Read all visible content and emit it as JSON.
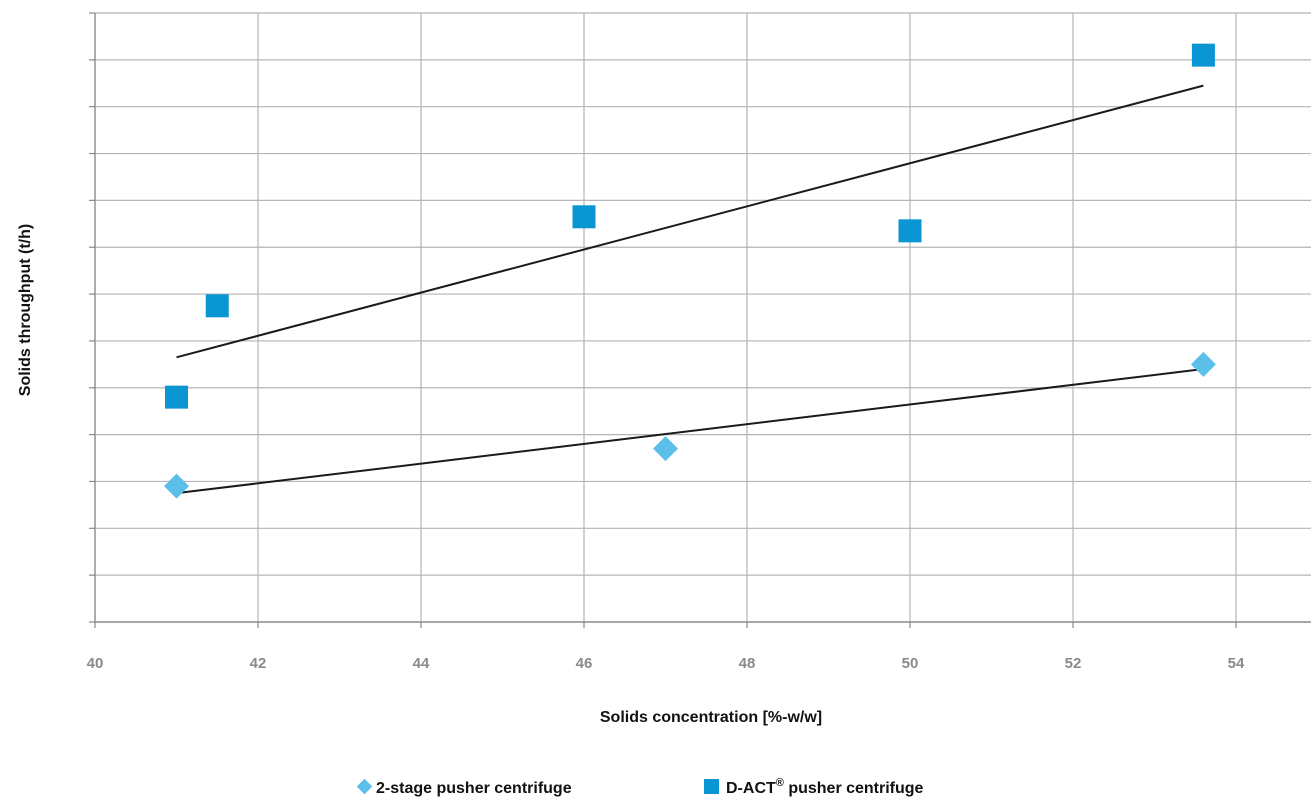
{
  "chart_data": {
    "type": "scatter",
    "title": "",
    "xlabel": "Solids concentration [%-w/w]",
    "ylabel": "Solids throughput (t/h)",
    "xlim": [
      40,
      54.5
    ],
    "ylim": [
      0,
      13
    ],
    "x_ticks": [
      "40",
      "42",
      "44",
      "46",
      "48",
      "50",
      "52",
      "54"
    ],
    "y_tick_labels_shown": false,
    "grid": true,
    "legend_position": "bottom-center",
    "series": [
      {
        "name": "2-stage pusher centrifuge",
        "marker": "diamond",
        "color": "#5bbfe9",
        "points": [
          {
            "x": 41,
            "y": 2.9
          },
          {
            "x": 47,
            "y": 3.7
          },
          {
            "x": 53.6,
            "y": 5.5
          }
        ],
        "trendline": {
          "x": [
            41,
            53.6
          ],
          "y": [
            2.75,
            5.4
          ]
        }
      },
      {
        "name": "D-ACT® pusher centrifuge",
        "marker": "square",
        "color": "#0a96d2",
        "points": [
          {
            "x": 41,
            "y": 4.8
          },
          {
            "x": 41.5,
            "y": 6.75
          },
          {
            "x": 46,
            "y": 8.65
          },
          {
            "x": 50,
            "y": 8.35
          },
          {
            "x": 53.6,
            "y": 12.1
          }
        ],
        "trendline": {
          "x": [
            41,
            53.6
          ],
          "y": [
            5.65,
            11.45
          ]
        }
      }
    ]
  },
  "legend": {
    "item1_label": "2-stage pusher centrifuge",
    "item2_label_main": "D-ACT",
    "item2_label_sup": "®",
    "item2_label_rest": " pusher centrifuge"
  }
}
